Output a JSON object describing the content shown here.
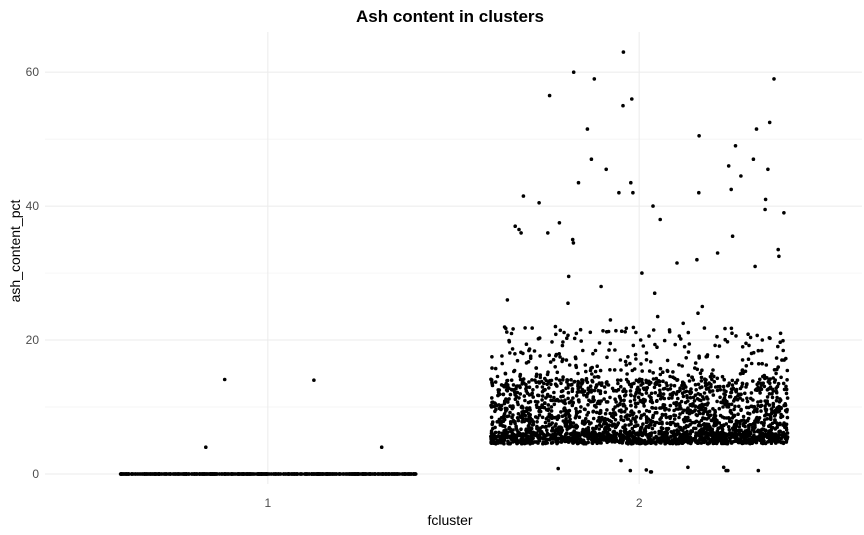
{
  "chart_data": {
    "type": "scatter",
    "title": "Ash content in clusters",
    "xlabel": "fcluster",
    "ylabel": "ash_content_pct",
    "categories": [
      "1",
      "2"
    ],
    "ylim": [
      -1.5,
      66
    ],
    "y_ticks": [
      0,
      20,
      40,
      60
    ],
    "grid": true,
    "jitter_width": 0.4,
    "point_color": "#000000",
    "series": [
      {
        "category": "1",
        "points_at_zero": 600,
        "values": [
          4.0,
          14.0,
          14.1,
          4.0
        ]
      },
      {
        "category": "2",
        "values": [
          63,
          60,
          59,
          59,
          56.5,
          56,
          55,
          52.5,
          51.5,
          51.5,
          50.5,
          49,
          47,
          47,
          46,
          45.5,
          45.5,
          44.5,
          43.5,
          43.5,
          42.5,
          42,
          42,
          42,
          41.5,
          41,
          40.5,
          40,
          39.5,
          39,
          38,
          37.5,
          37,
          36.5,
          36,
          36,
          35.5,
          35,
          34.5,
          33.5,
          33,
          32.5,
          32,
          31.5,
          31,
          30,
          29.5,
          28,
          27,
          26,
          25.5,
          25,
          24,
          23.5,
          23,
          22.5,
          22,
          21.5,
          21,
          20.5,
          20,
          19.5,
          19,
          18.5,
          18,
          17.5,
          17,
          16.5,
          16,
          2,
          1,
          0.5,
          0.5,
          0.3,
          0.5,
          1,
          0.8,
          0.5,
          0.3,
          0.6
        ],
        "dense_band": {
          "main_range": [
            4.5,
            6.0
          ],
          "body_range": [
            6.0,
            14.0
          ],
          "count_main": 900,
          "count_body": 1400,
          "scatter_range": [
            14.0,
            22.0
          ],
          "count_scatter": 260
        }
      }
    ]
  }
}
